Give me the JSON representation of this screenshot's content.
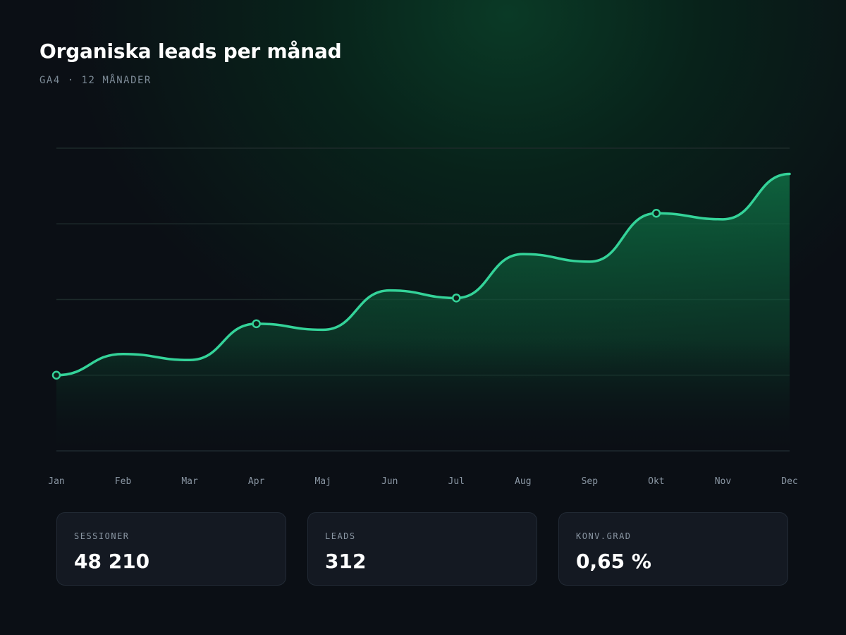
{
  "header": {
    "title": "Organiska leads per månad",
    "subtitle": "GA4 · 12 MÅNADER"
  },
  "colors": {
    "line": "#34d399",
    "grid": "#1d2a2a",
    "background": "#0b0f15"
  },
  "chart_data": {
    "type": "area",
    "categories": [
      "Jan",
      "Feb",
      "Mar",
      "Apr",
      "Maj",
      "Jun",
      "Jul",
      "Aug",
      "Sep",
      "Okt",
      "Nov",
      "Dec"
    ],
    "series": [
      {
        "values": [
          5.0,
          6.4,
          6.0,
          8.4,
          8.0,
          10.6,
          10.1,
          13.0,
          12.5,
          15.7,
          15.3,
          18.3
        ]
      }
    ],
    "highlighted_points": [
      "Jan",
      "Apr",
      "Jul",
      "Okt"
    ],
    "ylim": [
      0,
      20
    ],
    "grid": true,
    "title": "Organiska leads per månad",
    "xlabel": "",
    "ylabel": ""
  },
  "stats": [
    {
      "label": "SESSIONER",
      "value": "48 210"
    },
    {
      "label": "LEADS",
      "value": "312"
    },
    {
      "label": "KONV.GRAD",
      "value": "0,65 %"
    }
  ]
}
